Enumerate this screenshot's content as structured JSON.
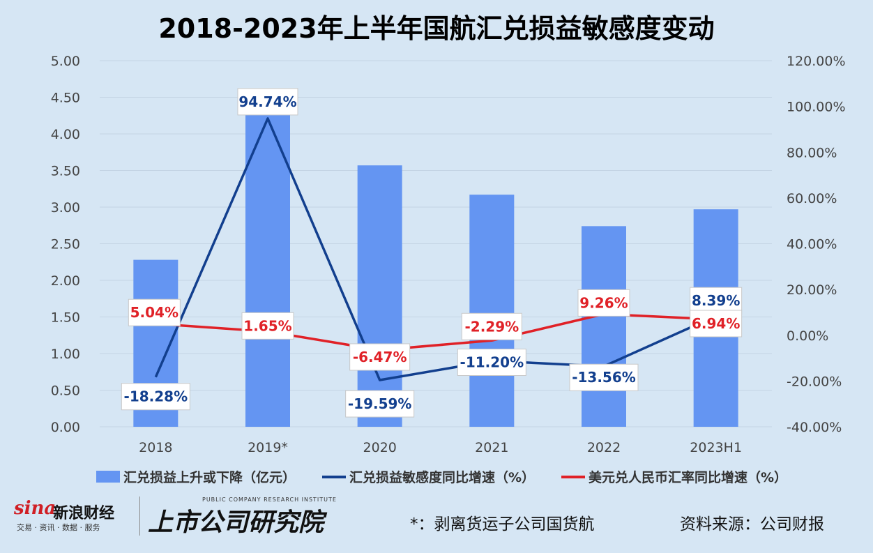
{
  "title": "2018-2023年上半年国航汇兑损益敏感度变动",
  "colors": {
    "background": "#d6e6f4",
    "bar": "#6495f2",
    "blue_line": "#123f8e",
    "red_line": "#e02127",
    "grid": "#c4d4e4"
  },
  "chart_data": {
    "type": "bar",
    "categories": [
      "2018",
      "2019*",
      "2020",
      "2021",
      "2022",
      "2023H1"
    ],
    "left_axis": {
      "ylim": [
        0,
        5
      ],
      "ticks": [
        "0.00",
        "0.50",
        "1.00",
        "1.50",
        "2.00",
        "2.50",
        "3.00",
        "3.50",
        "4.00",
        "4.50",
        "5.00"
      ]
    },
    "right_axis": {
      "ylim": [
        -40,
        120
      ],
      "ticks": [
        "-40.00%",
        "-20.00%",
        "0.00%",
        "20.00%",
        "40.00%",
        "60.00%",
        "80.00%",
        "100.00%",
        "120.00%"
      ]
    },
    "series": [
      {
        "name": "汇兑损益上升或下降（亿元）",
        "type": "bar",
        "axis": "left",
        "color": "#6495f2",
        "values": [
          2.28,
          4.43,
          3.57,
          3.17,
          2.74,
          2.97
        ]
      },
      {
        "name": "汇兑损益敏感度同比增速（%）",
        "type": "line",
        "axis": "right",
        "color": "#123f8e",
        "values": [
          -18.28,
          94.74,
          -19.59,
          -11.2,
          -13.56,
          8.39
        ],
        "labels": [
          "-18.28%",
          "94.74%",
          "-19.59%",
          "-11.20%",
          "-13.56%",
          "8.39%"
        ]
      },
      {
        "name": "美元兑人民币汇率同比增速（%）",
        "type": "line",
        "axis": "right",
        "color": "#e02127",
        "values": [
          5.04,
          1.65,
          -6.47,
          -2.29,
          9.26,
          6.94
        ],
        "labels": [
          "5.04%",
          "1.65%",
          "-6.47%",
          "-2.29%",
          "9.26%",
          "6.94%"
        ]
      }
    ],
    "legend_position": "bottom",
    "grid": true
  },
  "footer": {
    "note": "*：剥离货运子公司国货航",
    "source": "资料来源：公司财报"
  },
  "logos": {
    "sina_word": "sina",
    "sina_brand": "新浪财经",
    "sina_sub": "交易 · 资讯 · 数据 · 服务",
    "institute_en": "PUBLIC COMPANY RESEARCH INSTITUTE",
    "institute_cn": "上市公司研究院"
  }
}
